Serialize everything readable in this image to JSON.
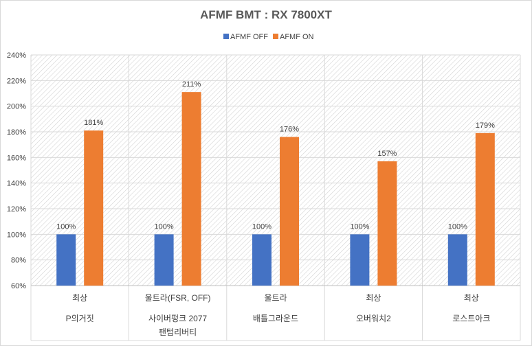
{
  "chart_data": {
    "type": "bar",
    "title": "AFMF BMT : RX  7800XT",
    "y_tick_labels": [
      "60%",
      "80%",
      "100%",
      "120%",
      "140%",
      "160%",
      "180%",
      "200%",
      "220%",
      "240%"
    ],
    "ylim": [
      60,
      240
    ],
    "ytick_step": 20,
    "grid": true,
    "legend_position": "top-center",
    "categories": [
      {
        "settings": "최상",
        "name_lines": [
          "P의거짓"
        ]
      },
      {
        "settings": "울트라(FSR, OFF)",
        "name_lines": [
          "사이버펑크 2077",
          "팬텀리버티"
        ]
      },
      {
        "settings": "울트라",
        "name_lines": [
          "배틀그라운드"
        ]
      },
      {
        "settings": "최상",
        "name_lines": [
          "오버워치2"
        ]
      },
      {
        "settings": "최상",
        "name_lines": [
          "로스트아크"
        ]
      }
    ],
    "series": [
      {
        "name": "AFMF OFF",
        "color": "#4472C4",
        "values": [
          100,
          100,
          100,
          100,
          100
        ],
        "labels": [
          "100%",
          "100%",
          "100%",
          "100%",
          "100%"
        ]
      },
      {
        "name": "AFMF ON",
        "color": "#ED7D31",
        "values": [
          181,
          211,
          176,
          157,
          179
        ],
        "labels": [
          "181%",
          "211%",
          "176%",
          "157%",
          "179%"
        ]
      }
    ]
  }
}
